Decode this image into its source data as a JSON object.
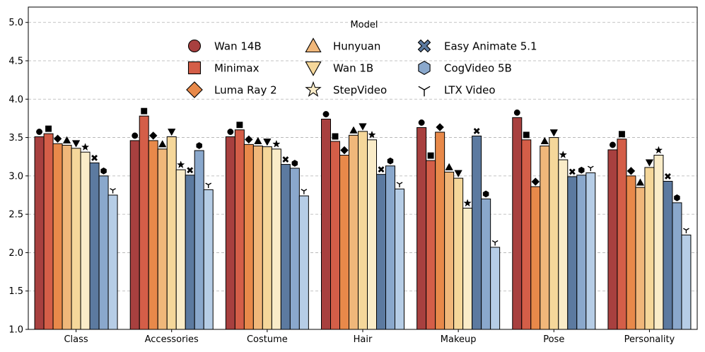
{
  "chart_data": {
    "type": "bar",
    "title": "",
    "xlabel": "",
    "ylabel": "",
    "ylim": [
      1.0,
      5.2
    ],
    "yticks": [
      "1.0",
      "1.5",
      "2.0",
      "2.5",
      "3.0",
      "3.5",
      "4.0",
      "4.5",
      "5.0"
    ],
    "grid": "horizontal dashed",
    "legend_title": "Model",
    "legend_position": "top-center",
    "categories": [
      "Class",
      "Accessories",
      "Costume",
      "Hair",
      "Makeup",
      "Pose",
      "Personality"
    ],
    "series": [
      {
        "name": "Wan 14B",
        "color": "#a8403f",
        "marker": "circle",
        "values": [
          3.51,
          3.46,
          3.51,
          3.74,
          3.63,
          3.76,
          3.34
        ]
      },
      {
        "name": "Minimax",
        "color": "#d45e48",
        "marker": "square",
        "values": [
          3.55,
          3.78,
          3.6,
          3.45,
          3.2,
          3.47,
          3.48
        ]
      },
      {
        "name": "Luma Ray 2",
        "color": "#e8894a",
        "marker": "diamond",
        "values": [
          3.42,
          3.46,
          3.41,
          3.27,
          3.57,
          2.86,
          3.0
        ]
      },
      {
        "name": "Hunyuan",
        "color": "#f0b77a",
        "marker": "triangle-up",
        "values": [
          3.4,
          3.35,
          3.39,
          3.53,
          3.05,
          3.39,
          2.85
        ]
      },
      {
        "name": "Wan 1B",
        "color": "#f5d79a",
        "marker": "triangle-down",
        "values": [
          3.36,
          3.51,
          3.38,
          3.58,
          2.97,
          3.5,
          3.11
        ]
      },
      {
        "name": "StepVideo",
        "color": "#faecc8",
        "marker": "star",
        "values": [
          3.31,
          3.08,
          3.35,
          3.47,
          2.58,
          3.21,
          3.27
        ]
      },
      {
        "name": "Easy Animate 5.1",
        "color": "#5c7aa0",
        "marker": "x",
        "values": [
          3.17,
          3.01,
          3.15,
          3.02,
          3.52,
          2.99,
          2.93
        ]
      },
      {
        "name": "CogVideo 5B",
        "color": "#8aa8cc",
        "marker": "hexagon",
        "values": [
          3.0,
          3.33,
          3.1,
          3.13,
          2.7,
          3.01,
          2.65
        ]
      },
      {
        "name": "LTX Video",
        "color": "#b6cde6",
        "marker": "tri-down",
        "values": [
          2.75,
          2.82,
          2.74,
          2.83,
          2.07,
          3.04,
          2.23
        ]
      }
    ]
  }
}
